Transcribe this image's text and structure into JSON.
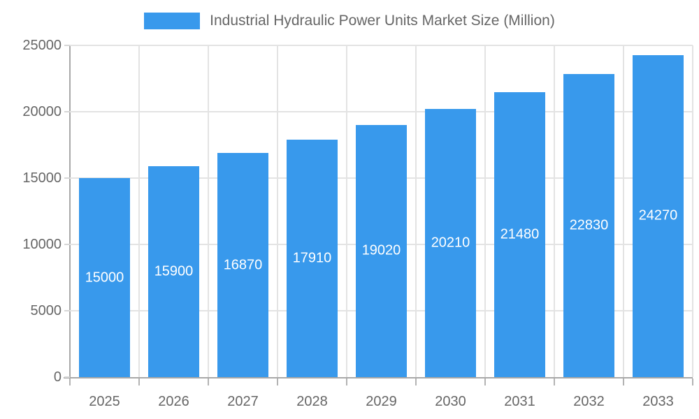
{
  "chart_data": {
    "type": "bar",
    "title": "Industrial Hydraulic Power Units Market Size (Million)",
    "categories": [
      "2025",
      "2026",
      "2027",
      "2028",
      "2029",
      "2030",
      "2031",
      "2032",
      "2033"
    ],
    "values": [
      15000,
      15900,
      16870,
      17910,
      19020,
      20210,
      21480,
      22830,
      24270
    ],
    "value_labels": [
      "15000",
      "15900",
      "16870",
      "17910",
      "19020",
      "20210",
      "21480",
      "22830",
      "24270"
    ],
    "xlabel": "",
    "ylabel": "",
    "ylim": [
      0,
      25000
    ],
    "y_ticks": [
      0,
      5000,
      10000,
      15000,
      20000,
      25000
    ],
    "y_tick_labels": [
      "0",
      "5000",
      "10000",
      "15000",
      "20000",
      "25000"
    ],
    "grid": true,
    "legend_position": "top",
    "colors": {
      "bar": "#3899ec",
      "value_label": "#ffffff",
      "axis_line": "#a8a8a8",
      "gridline": "#e3e3e3",
      "tick_mark_x": "#b3b3b3",
      "tick_mark_y": "#d6d6d6",
      "axis_text": "#666666",
      "legend_text": "#666666",
      "background": "#ffffff"
    }
  }
}
